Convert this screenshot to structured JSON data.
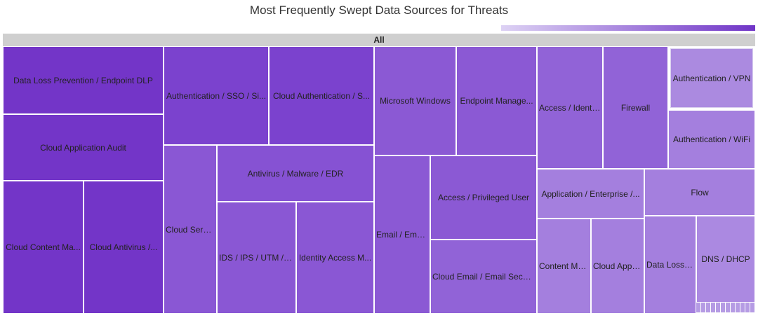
{
  "chart_data": {
    "type": "treemap",
    "title": "Most Frequently Swept Data Sources for Threats",
    "root_label": "All",
    "legend": {
      "type": "color-gradient",
      "placement": "top-right",
      "color_low": "#ddd2f4",
      "color_high": "#7035c7"
    },
    "tiles": [
      {
        "label": "Data Loss Prevention / Endpoint DLP",
        "color": "#7335c8"
      },
      {
        "label": "Cloud Application Audit",
        "color": "#7335c8"
      },
      {
        "label": "Cloud Content Ma...",
        "color": "#7335c8"
      },
      {
        "label": "Cloud Antivirus /...",
        "color": "#7335c8"
      },
      {
        "label": "Authentication / SSO / Si...",
        "color": "#7b42ce"
      },
      {
        "label": "Cloud Authentication / S...",
        "color": "#7b42ce"
      },
      {
        "label": "Cloud Servi...",
        "color": "#8a57d4"
      },
      {
        "label": "Antivirus / Malware / EDR",
        "color": "#8652d3"
      },
      {
        "label": "IDS / IPS / UTM / T...",
        "color": "#8a57d4"
      },
      {
        "label": "Identity Access M...",
        "color": "#8a57d4"
      },
      {
        "label": "Microsoft Windows",
        "color": "#8b59d4"
      },
      {
        "label": "Endpoint Manage...",
        "color": "#8b59d4"
      },
      {
        "label": "Email / Email...",
        "color": "#8b59d4"
      },
      {
        "label": "Access / Privileged User",
        "color": "#8b59d4"
      },
      {
        "label": "Cloud Email / Email Securi...",
        "color": "#9163d7"
      },
      {
        "label": "Access / Identit...",
        "color": "#9163d7"
      },
      {
        "label": "Firewall",
        "color": "#9163d7"
      },
      {
        "label": "Authentication / VPN",
        "color": "#ab8ae0",
        "selected": true
      },
      {
        "label": "Authentication / WiFi",
        "color": "#a47fde"
      },
      {
        "label": "Application / Enterprise /...",
        "color": "#a47fde"
      },
      {
        "label": "Flow",
        "color": "#a47fde"
      },
      {
        "label": "Content Ma...",
        "color": "#a47fde"
      },
      {
        "label": "Cloud Appli...",
        "color": "#a47fde"
      },
      {
        "label": "Data Loss P...",
        "color": "#a47fde"
      },
      {
        "label": "DNS / DHCP",
        "color": "#ab89e1"
      }
    ]
  }
}
